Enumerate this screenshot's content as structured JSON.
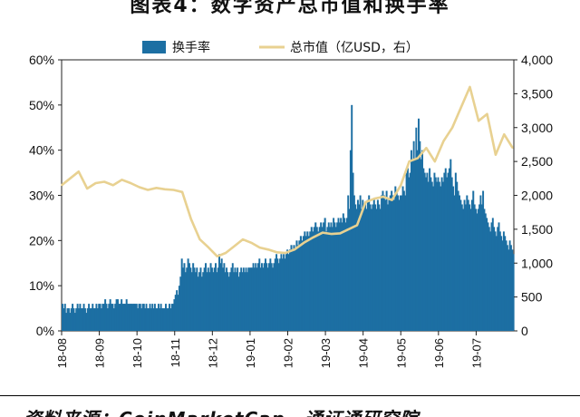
{
  "figure": {
    "title": "图表4：数字资产总市值和换手率",
    "source": "资料来源：CoinMarketCap，通证通研究院"
  },
  "chart_data": {
    "type": "bar+line",
    "x_tick_labels": [
      "18-08",
      "18-09",
      "18-10",
      "18-11",
      "18-12",
      "19-01",
      "19-02",
      "19-03",
      "19-04",
      "19-05",
      "19-06",
      "19-07"
    ],
    "y_left": {
      "ticks": [
        "0%",
        "10%",
        "20%",
        "30%",
        "40%",
        "50%",
        "60%"
      ],
      "range": [
        0,
        60
      ],
      "unit": "%"
    },
    "y_right": {
      "ticks": [
        "0",
        "500",
        "1,000",
        "1,500",
        "2,000",
        "2,500",
        "3,000",
        "3,500",
        "4,000"
      ],
      "range": [
        0,
        4000
      ],
      "unit": "亿USD"
    },
    "legend": {
      "position": "top",
      "items": [
        {
          "name": "换手率",
          "kind": "bar",
          "color": "#1c6fa3"
        },
        {
          "name": "总市值（亿USD，右）",
          "kind": "line",
          "color": "#e8d191"
        }
      ]
    },
    "series": [
      {
        "name": "换手率",
        "type": "bar",
        "axis": "left",
        "color": "#1c6fa3",
        "months": [
          "18-08",
          "18-09",
          "18-10",
          "18-11",
          "18-12",
          "19-01",
          "19-02",
          "19-03",
          "19-04",
          "19-05",
          "19-06",
          "19-07"
        ],
        "values_by_month": [
          [
            6,
            5,
            6,
            4,
            5,
            5,
            4,
            5,
            6,
            5,
            4,
            5,
            6,
            5,
            6,
            5,
            5,
            6,
            5,
            4,
            5,
            6,
            5,
            5,
            6,
            5,
            5,
            6,
            5,
            6
          ],
          [
            6,
            5,
            6,
            6,
            7,
            6,
            5,
            6,
            7,
            6,
            6,
            5,
            6,
            7,
            7,
            6,
            6,
            7,
            6,
            6,
            6,
            7,
            6,
            6,
            6,
            6,
            6,
            6,
            6,
            6
          ],
          [
            5,
            6,
            6,
            5,
            6,
            6,
            5,
            6,
            5,
            5,
            6,
            5,
            6,
            5,
            6,
            5,
            5,
            6,
            5,
            6,
            5,
            5,
            5,
            6,
            5,
            5,
            6,
            5,
            6,
            6,
            7
          ],
          [
            8,
            9,
            8,
            10,
            12,
            16,
            14,
            15,
            13,
            14,
            16,
            15,
            14,
            13,
            15,
            14,
            13,
            14,
            12,
            13,
            14,
            12,
            13,
            14,
            15,
            13,
            14,
            13,
            15,
            14
          ],
          [
            13,
            14,
            15,
            13,
            14,
            17,
            15,
            16,
            14,
            15,
            13,
            14,
            13,
            12,
            13,
            14,
            15,
            13,
            14,
            13,
            14,
            12,
            13,
            14,
            13,
            14,
            13,
            14,
            13,
            14,
            14
          ],
          [
            14,
            14,
            15,
            14,
            15,
            14,
            15,
            16,
            14,
            15,
            14,
            15,
            16,
            15,
            14,
            15,
            16,
            15,
            14,
            15,
            16,
            17,
            16,
            15,
            16,
            17,
            16,
            17,
            16,
            17,
            18
          ],
          [
            17,
            18,
            19,
            18,
            19,
            18,
            20,
            19,
            20,
            21,
            20,
            21,
            22,
            21,
            22,
            21,
            22,
            23,
            22,
            23,
            24,
            23,
            22,
            23,
            24,
            23,
            24,
            25
          ],
          [
            22,
            23,
            24,
            23,
            24,
            23,
            25,
            24,
            23,
            24,
            25,
            24,
            25,
            24,
            26,
            25,
            24,
            25,
            30,
            27,
            40,
            50,
            35,
            30,
            28,
            27,
            29,
            28,
            30,
            27,
            29
          ],
          [
            27,
            28,
            27,
            29,
            30,
            28,
            27,
            28,
            29,
            28,
            27,
            29,
            28,
            27,
            30,
            31,
            30,
            29,
            31,
            28,
            29,
            30,
            31,
            30,
            29,
            32,
            31,
            30,
            29,
            30
          ],
          [
            30,
            32,
            31,
            30,
            35,
            36,
            34,
            35,
            40,
            38,
            42,
            38,
            45,
            40,
            47,
            42,
            38,
            40,
            36,
            35,
            34,
            35,
            33,
            36,
            34,
            33,
            32,
            35,
            34,
            33,
            34
          ],
          [
            33,
            32,
            34,
            33,
            35,
            36,
            34,
            35,
            36,
            38,
            34,
            32,
            30,
            35,
            33,
            31,
            30,
            29,
            28,
            27,
            29,
            28,
            30,
            29,
            28,
            27,
            29,
            31,
            28,
            27
          ],
          [
            26,
            27,
            28,
            30,
            28,
            31,
            27,
            26,
            25,
            24,
            23,
            22,
            24,
            25,
            23,
            22,
            21,
            23,
            24,
            22,
            21,
            20,
            22,
            21,
            20,
            19,
            18,
            20,
            19,
            18,
            17
          ]
        ]
      },
      {
        "name": "总市值（亿USD，右）",
        "type": "line",
        "axis": "right",
        "color": "#e8d191",
        "x": [
          "18-08-01",
          "18-08-08",
          "18-08-15",
          "18-08-22",
          "18-08-29",
          "18-09-05",
          "18-09-12",
          "18-09-19",
          "18-09-26",
          "18-10-03",
          "18-10-10",
          "18-10-17",
          "18-10-24",
          "18-10-31",
          "18-11-07",
          "18-11-14",
          "18-11-21",
          "18-11-28",
          "18-12-05",
          "18-12-12",
          "18-12-19",
          "18-12-26",
          "19-01-02",
          "19-01-09",
          "19-01-16",
          "19-01-23",
          "19-01-30",
          "19-02-06",
          "19-02-13",
          "19-02-20",
          "19-02-27",
          "19-03-06",
          "19-03-13",
          "19-03-20",
          "19-03-27",
          "19-04-03",
          "19-04-10",
          "19-04-17",
          "19-04-24",
          "19-05-01",
          "19-05-08",
          "19-05-15",
          "19-05-22",
          "19-05-29",
          "19-06-05",
          "19-06-12",
          "19-06-19",
          "19-06-26",
          "19-07-03",
          "19-07-10",
          "19-07-17",
          "19-07-24",
          "19-07-31"
        ],
        "values": [
          2150,
          2250,
          2350,
          2100,
          2180,
          2200,
          2150,
          2230,
          2180,
          2120,
          2080,
          2110,
          2090,
          2080,
          2050,
          1650,
          1350,
          1230,
          1100,
          1150,
          1250,
          1350,
          1300,
          1230,
          1200,
          1160,
          1150,
          1200,
          1300,
          1380,
          1450,
          1430,
          1440,
          1500,
          1560,
          1900,
          1950,
          1980,
          1930,
          2150,
          2500,
          2550,
          2700,
          2500,
          2800,
          3000,
          3300,
          3600,
          3100,
          3200,
          2600,
          2900,
          2700
        ]
      }
    ]
  }
}
